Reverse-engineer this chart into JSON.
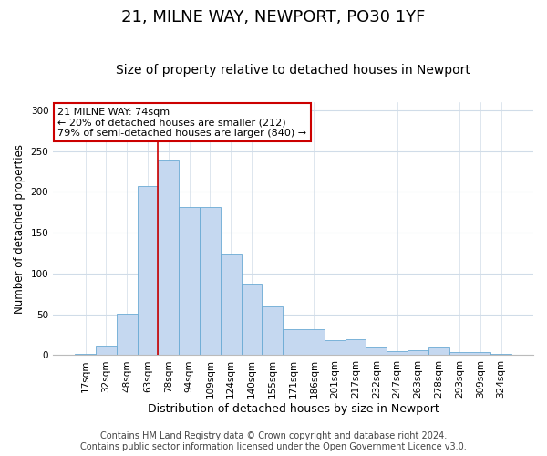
{
  "title1": "21, MILNE WAY, NEWPORT, PO30 1YF",
  "title2": "Size of property relative to detached houses in Newport",
  "xlabel": "Distribution of detached houses by size in Newport",
  "ylabel": "Number of detached properties",
  "categories": [
    "17sqm",
    "32sqm",
    "48sqm",
    "63sqm",
    "78sqm",
    "94sqm",
    "109sqm",
    "124sqm",
    "140sqm",
    "155sqm",
    "171sqm",
    "186sqm",
    "201sqm",
    "217sqm",
    "232sqm",
    "247sqm",
    "263sqm",
    "278sqm",
    "293sqm",
    "309sqm",
    "324sqm"
  ],
  "values": [
    2,
    12,
    51,
    207,
    240,
    181,
    181,
    123,
    88,
    60,
    32,
    32,
    18,
    20,
    10,
    5,
    6,
    10,
    4,
    4,
    2
  ],
  "bar_color": "#c5d8f0",
  "bar_edge_color": "#6aaad4",
  "vline_x": 3.5,
  "vline_color": "#cc0000",
  "annotation_text": "21 MILNE WAY: 74sqm\n← 20% of detached houses are smaller (212)\n79% of semi-detached houses are larger (840) →",
  "annotation_box_color": "white",
  "annotation_box_edge": "#cc0000",
  "grid_color": "#d0dce8",
  "footer1": "Contains HM Land Registry data © Crown copyright and database right 2024.",
  "footer2": "Contains public sector information licensed under the Open Government Licence v3.0.",
  "ylim": [
    0,
    310
  ],
  "title1_fontsize": 13,
  "title2_fontsize": 10,
  "xlabel_fontsize": 9,
  "ylabel_fontsize": 8.5,
  "tick_fontsize": 7.5,
  "annotation_fontsize": 8,
  "footer_fontsize": 7
}
